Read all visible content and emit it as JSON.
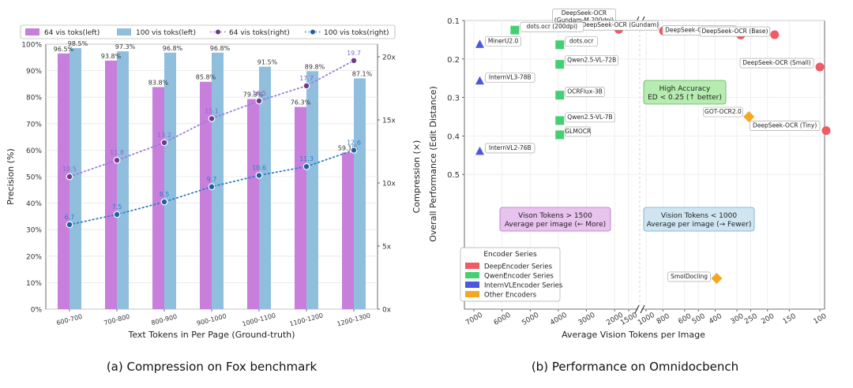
{
  "captions": {
    "left": "(a)  Compression on Fox benchmark",
    "right": "(b)  Performance on Omnidocbench"
  },
  "colors": {
    "bar64": "#c77fdb",
    "bar100": "#8fbfdd",
    "line64": "#9b7be0",
    "line100": "#2f7bc8",
    "deep": "#ef5c63",
    "qwen": "#45cf73",
    "intern": "#4a57e0",
    "other": "#f5a623",
    "green_box": "#b7ecb0",
    "purple_box": "#e8c3ee",
    "blue_box": "#cfe6f2"
  },
  "chart_data": [
    {
      "type": "bar",
      "categories": [
        "600-700",
        "700-800",
        "800-900",
        "900-1000",
        "1000-1100",
        "1100-1200",
        "1200-1300"
      ],
      "xlabel": "Text Tokens in Per Page (Ground-truth)",
      "ylabel": "Precision (%)",
      "ylabel_right": "Compression (×)",
      "ylim": [
        0,
        100
      ],
      "ylim_right": [
        0,
        21
      ],
      "y_ticks": [
        "0%",
        "10%",
        "20%",
        "30%",
        "40%",
        "50%",
        "60%",
        "70%",
        "80%",
        "90%",
        "100%"
      ],
      "y_ticks_right": [
        {
          "v": 0,
          "t": "0x"
        },
        {
          "v": 5,
          "t": "5x"
        },
        {
          "v": 10,
          "t": "10x"
        },
        {
          "v": 15,
          "t": "15x"
        },
        {
          "v": 20,
          "t": "20x"
        }
      ],
      "legend_position": "top",
      "series": [
        {
          "name": "64 vis toks(left)",
          "kind": "bar",
          "values": [
            96.5,
            93.8,
            83.8,
            85.8,
            79.3,
            76.3,
            59.1
          ],
          "labels": [
            "96.5%",
            "93.8%",
            "83.8%",
            "85.8%",
            "79.3%",
            "76.3%",
            "59.1%"
          ]
        },
        {
          "name": "100 vis toks(left)",
          "kind": "bar",
          "values": [
            98.5,
            97.3,
            96.8,
            96.8,
            91.5,
            89.8,
            87.1
          ],
          "labels": [
            "98.5%",
            "97.3%",
            "96.8%",
            "96.8%",
            "91.5%",
            "89.8%",
            "87.1%"
          ]
        },
        {
          "name": "64 vis toks(right)",
          "kind": "line",
          "axis": "right",
          "values": [
            10.5,
            11.8,
            13.2,
            15.1,
            16.5,
            17.7,
            19.7
          ],
          "labels": [
            "10.5",
            "11.8",
            "13.2",
            "15.1",
            "16.5",
            "17.7",
            "19.7"
          ]
        },
        {
          "name": "100 vis toks(right)",
          "kind": "line",
          "axis": "right",
          "values": [
            6.7,
            7.5,
            8.5,
            9.7,
            10.6,
            11.3,
            12.6
          ],
          "labels": [
            "6.7",
            "7.5",
            "8.5",
            "9.7",
            "10.6",
            "11.3",
            "12.6"
          ]
        }
      ]
    },
    {
      "type": "scatter",
      "xlabel": "Average Vision Tokens per Image",
      "ylabel": "Overall Performance (Edit Distance)",
      "x_scale": "broken axis, decreasing to the right (7000 to 1000 | 1000 to 100)",
      "x_ticks_left": [
        7000,
        6000,
        5000,
        4000,
        3000,
        2000,
        1500
      ],
      "x_ticks_right": [
        1000,
        800,
        600,
        500,
        400,
        300,
        250,
        200,
        150,
        100
      ],
      "ylim": [
        0.1,
        0.85
      ],
      "y_ticks": [
        {
          "v": 0.1,
          "t": "0.1"
        },
        {
          "v": 0.2,
          "t": "0.2"
        },
        {
          "v": 0.3,
          "t": "0.3"
        },
        {
          "v": 0.4,
          "t": "0.4"
        },
        {
          "v": 0.5,
          "t": "0.5"
        }
      ],
      "legend_title": "Encoder Series",
      "legend_position": "bottom-left",
      "legend": [
        {
          "name": "DeepEncoder Series",
          "color": "deep"
        },
        {
          "name": "QwenEncoder Series",
          "color": "qwen"
        },
        {
          "name": "InternVLEncoder Series",
          "color": "intern"
        },
        {
          "name": "Other Encoders",
          "color": "other"
        }
      ],
      "points": [
        {
          "label": "DeepSeek-OCR\n(Gundam-M 200dpi)",
          "x": 1853,
          "y": 0.123,
          "series": "deep"
        },
        {
          "label": "DeepSeek-OCR (Gundam)",
          "x": 795,
          "y": 0.127,
          "series": "deep"
        },
        {
          "label": "DeepSeek-OCR (Large)",
          "x": 285,
          "y": 0.138,
          "series": "deep"
        },
        {
          "label": "DeepSeek-OCR (Base)",
          "x": 182,
          "y": 0.137,
          "series": "deep"
        },
        {
          "label": "DeepSeek-OCR (Small)",
          "x": 100,
          "y": 0.221,
          "series": "deep"
        },
        {
          "label": "DeepSeek-OCR (Tiny)",
          "x": 64,
          "y": 0.386,
          "series": "deep"
        },
        {
          "label": "dots.ocr (200dpi)",
          "x": 5545,
          "y": 0.125,
          "series": "qwen"
        },
        {
          "label": "dots.ocr",
          "x": 3949,
          "y": 0.163,
          "series": "qwen"
        },
        {
          "label": "Qwen2.5-VL-72B",
          "x": 3949,
          "y": 0.214,
          "series": "qwen"
        },
        {
          "label": "OCRFlux-3B",
          "x": 3949,
          "y": 0.294,
          "series": "qwen"
        },
        {
          "label": "Qwen2.5-VL-7B",
          "x": 3949,
          "y": 0.36,
          "series": "qwen"
        },
        {
          "label": "GLMOCR",
          "x": 3949,
          "y": 0.397,
          "series": "qwen"
        },
        {
          "label": "MinerU2.0",
          "x": 6790,
          "y": 0.162,
          "series": "intern"
        },
        {
          "label": "InternVL3-78B",
          "x": 6790,
          "y": 0.257,
          "series": "intern"
        },
        {
          "label": "InternVL2-76B",
          "x": 6790,
          "y": 0.44,
          "series": "intern"
        },
        {
          "label": "GOT-OCR2.0",
          "x": 256,
          "y": 0.35,
          "series": "other"
        },
        {
          "label": "SmolDocling",
          "x": 392,
          "y": 0.77,
          "series": "other"
        }
      ],
      "annotations": [
        {
          "text": [
            "High Accuracy",
            "ED < 0.25 (↑ better)"
          ],
          "style": "green_box"
        },
        {
          "text": [
            "Vison Tokens > 1500",
            "Average per image (← More)"
          ],
          "style": "purple_box"
        },
        {
          "text": [
            "Vision Tokens < 1000",
            "Average per image (→ Fewer)"
          ],
          "style": "blue_box"
        }
      ]
    }
  ]
}
